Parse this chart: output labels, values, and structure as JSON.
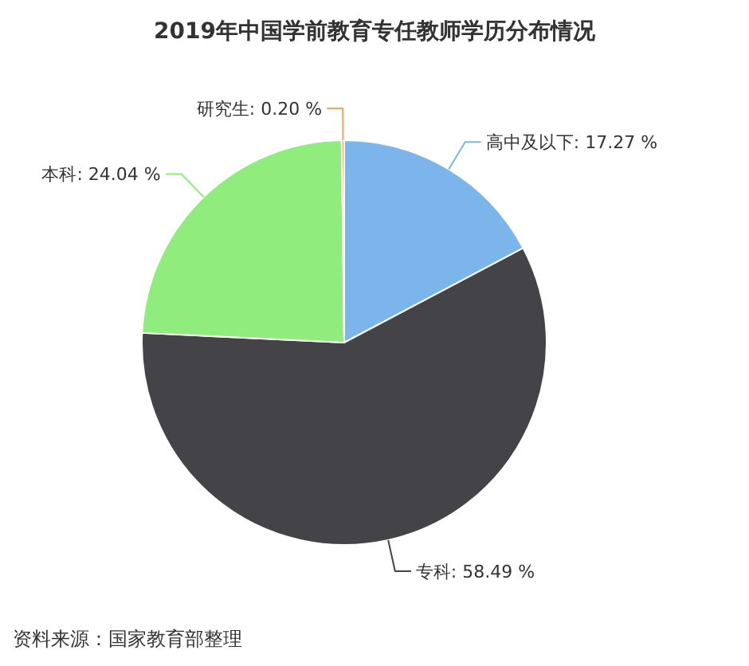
{
  "chart_data": {
    "type": "pie",
    "title": "2019年中国学前教育专任教师学历分布情况",
    "categories": [
      "高中及以下",
      "专科",
      "本科",
      "研究生"
    ],
    "values": [
      17.27,
      58.49,
      24.04,
      0.2
    ],
    "colors": [
      "#7cb5ec",
      "#434348",
      "#90ed7d",
      "#f7a35c"
    ],
    "value_labels": [
      ": 17.27 %",
      ": 58.49 %",
      ": 24.04 %",
      ": 0.20 %"
    ],
    "annotations": [
      "资料来源：国家教育部整理"
    ]
  }
}
